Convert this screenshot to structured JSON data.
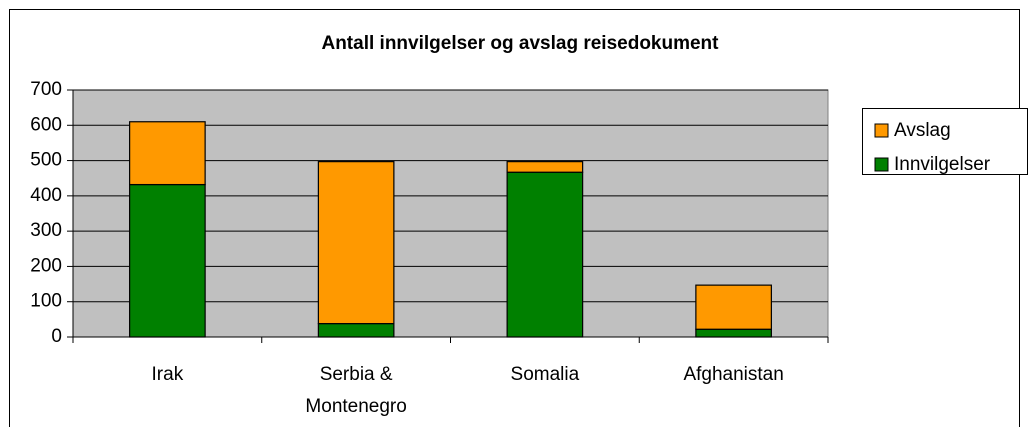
{
  "chart_data": {
    "type": "stacked_bar",
    "title": "Antall innvilgelser og avslag reisedokument",
    "categories": [
      "Irak",
      "Serbia & Montenegro",
      "Somalia",
      "Afghanistan"
    ],
    "series": [
      {
        "name": "Innvilgelser",
        "color": "#008000",
        "values": [
          432,
          38,
          467,
          22
        ]
      },
      {
        "name": "Avslag",
        "color": "#ff9900",
        "values": [
          178,
          459,
          30,
          125
        ]
      }
    ],
    "ylim": [
      0,
      700
    ],
    "yticks": [
      0,
      100,
      200,
      300,
      400,
      500,
      600,
      700
    ],
    "grid": true,
    "legend": "right"
  }
}
